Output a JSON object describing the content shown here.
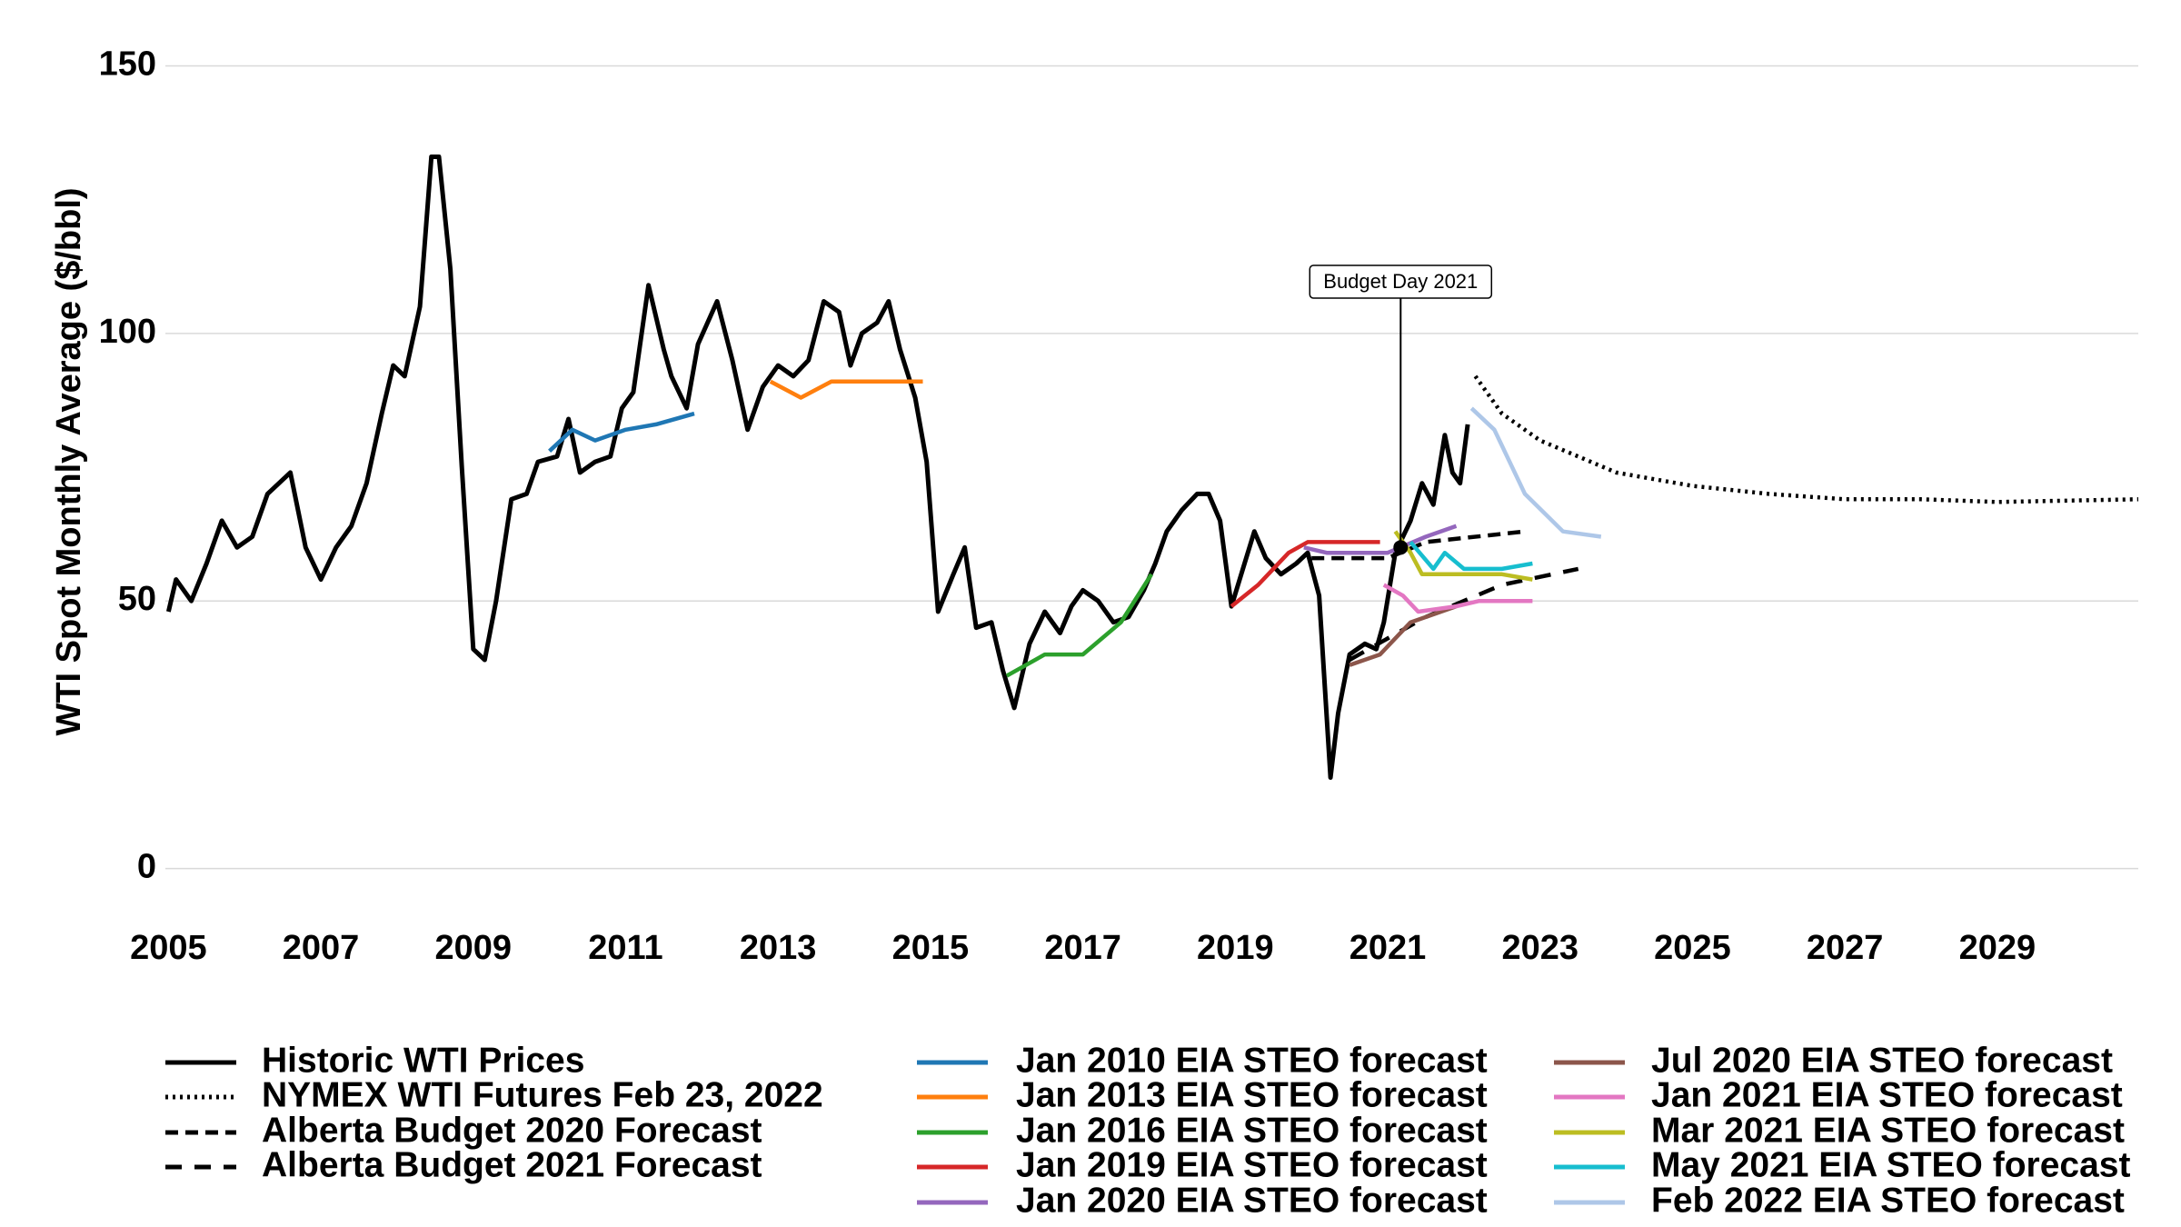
{
  "chart_data": {
    "type": "line",
    "y_label": "WTI Spot Monthly Average ($/bbl)",
    "xlim": [
      2004.96,
      2030.85
    ],
    "xticks": [
      2005,
      2007,
      2009,
      2011,
      2013,
      2015,
      2017,
      2019,
      2021,
      2023,
      2025,
      2027,
      2029
    ],
    "ylim": [
      -5,
      155
    ],
    "yticks": [
      0,
      50,
      100,
      150
    ],
    "grid": true,
    "legend": "bottom",
    "annotation": {
      "text": "Budget Day 2021",
      "x": 2021.17,
      "y": 60
    },
    "series": [
      {
        "name": "Historic WTI Prices",
        "color": "#000000",
        "dash": "solid",
        "x": [
          2005.0,
          2005.1,
          2005.3,
          2005.5,
          2005.7,
          2005.9,
          2006.1,
          2006.3,
          2006.6,
          2006.8,
          2007.0,
          2007.2,
          2007.4,
          2007.6,
          2007.8,
          2007.95,
          2008.1,
          2008.3,
          2008.45,
          2008.55,
          2008.7,
          2008.85,
          2009.0,
          2009.15,
          2009.3,
          2009.5,
          2009.7,
          2009.85,
          2010.1,
          2010.25,
          2010.4,
          2010.6,
          2010.8,
          2010.95,
          2011.1,
          2011.3,
          2011.5,
          2011.6,
          2011.8,
          2011.95,
          2012.2,
          2012.4,
          2012.6,
          2012.8,
          2013.0,
          2013.2,
          2013.4,
          2013.6,
          2013.8,
          2013.95,
          2014.1,
          2014.3,
          2014.45,
          2014.6,
          2014.8,
          2014.95,
          2015.1,
          2015.3,
          2015.45,
          2015.6,
          2015.8,
          2015.95,
          2016.1,
          2016.3,
          2016.5,
          2016.7,
          2016.85,
          2017.0,
          2017.2,
          2017.4,
          2017.6,
          2017.8,
          2017.95,
          2018.1,
          2018.3,
          2018.5,
          2018.65,
          2018.8,
          2018.95,
          2019.1,
          2019.25,
          2019.4,
          2019.6,
          2019.8,
          2019.95,
          2020.1,
          2020.25,
          2020.35,
          2020.5,
          2020.7,
          2020.85,
          2020.95,
          2021.1,
          2021.3,
          2021.45,
          2021.6,
          2021.75,
          2021.85,
          2021.95,
          2022.05
        ],
        "values": [
          48,
          54,
          50,
          57,
          65,
          60,
          62,
          70,
          74,
          60,
          54,
          60,
          64,
          72,
          85,
          94,
          92,
          105,
          133,
          133,
          112,
          75,
          41,
          39,
          50,
          69,
          70,
          76,
          77,
          84,
          74,
          76,
          77,
          86,
          89,
          109,
          97,
          92,
          86,
          98,
          106,
          95,
          82,
          90,
          94,
          92,
          95,
          106,
          104,
          94,
          100,
          102,
          106,
          97,
          88,
          76,
          48,
          55,
          60,
          45,
          46,
          37,
          30,
          42,
          48,
          44,
          49,
          52,
          50,
          46,
          47,
          52,
          57,
          63,
          67,
          70,
          70,
          65,
          49,
          56,
          63,
          58,
          55,
          57,
          59,
          51,
          17,
          29,
          40,
          42,
          41,
          46,
          59,
          65,
          72,
          68,
          81,
          74,
          72,
          83
        ]
      },
      {
        "name": "NYMEX WTI Futures Feb 23, 2022",
        "color": "#000000",
        "dash": "dotted",
        "x": [
          2022.15,
          2022.5,
          2023,
          2024,
          2025,
          2026,
          2027,
          2028,
          2029,
          2030.85
        ],
        "values": [
          92,
          85,
          80,
          74,
          71.5,
          70,
          69,
          69,
          68.5,
          69
        ]
      },
      {
        "name": "Alberta Budget 2020 Forecast",
        "color": "#000000",
        "dash": "dashed",
        "x": [
          2020.0,
          2021.0,
          2021.5,
          2022.8
        ],
        "values": [
          58,
          58,
          61,
          63
        ]
      },
      {
        "name": "Alberta Budget 2021 Forecast",
        "color": "#000000",
        "dash": "longdash",
        "x": [
          2020.5,
          2021.5,
          2022.5,
          2023.5
        ],
        "values": [
          39,
          47,
          53,
          56
        ]
      },
      {
        "name": "Jan 2010 EIA STEO forecast",
        "color": "#1f77b4",
        "dash": "solid",
        "x": [
          2010.0,
          2010.3,
          2010.6,
          2011.0,
          2011.4,
          2011.9
        ],
        "values": [
          78,
          82,
          80,
          82,
          83,
          85
        ]
      },
      {
        "name": "Jan 2013 EIA STEO forecast",
        "color": "#ff7f0e",
        "dash": "solid",
        "x": [
          2012.9,
          2013.3,
          2013.7,
          2014.9
        ],
        "values": [
          91,
          88,
          91,
          91
        ]
      },
      {
        "name": "Jan 2016 EIA STEO forecast",
        "color": "#2ca02c",
        "dash": "solid",
        "x": [
          2016.0,
          2016.5,
          2017.0,
          2017.5,
          2017.9
        ],
        "values": [
          36,
          40,
          40,
          46,
          55
        ]
      },
      {
        "name": "Jan 2019 EIA STEO forecast",
        "color": "#d62728",
        "dash": "solid",
        "x": [
          2018.95,
          2019.3,
          2019.7,
          2019.95,
          2020.4,
          2020.9
        ],
        "values": [
          49,
          53,
          59,
          61,
          61,
          61
        ]
      },
      {
        "name": "Jan 2020 EIA STEO forecast",
        "color": "#9467bd",
        "dash": "solid",
        "x": [
          2019.9,
          2020.2,
          2020.6,
          2021.0,
          2021.5,
          2021.9
        ],
        "values": [
          60,
          59,
          59,
          59,
          62,
          64
        ]
      },
      {
        "name": "Jul 2020 EIA STEO forecast",
        "color": "#8c564b",
        "dash": "solid",
        "x": [
          2020.5,
          2020.9,
          2021.3,
          2021.7,
          2021.9
        ],
        "values": [
          38,
          40,
          46,
          48,
          49
        ]
      },
      {
        "name": "Jan 2021 EIA STEO forecast",
        "color": "#e377c2",
        "dash": "solid",
        "x": [
          2020.95,
          2021.2,
          2021.4,
          2021.9,
          2022.2,
          2022.9
        ],
        "values": [
          53,
          51,
          48,
          49,
          50,
          50
        ]
      },
      {
        "name": "Mar 2021 EIA STEO forecast",
        "color": "#bcbd22",
        "dash": "solid",
        "x": [
          2021.1,
          2021.3,
          2021.45,
          2022.0,
          2022.5,
          2022.9
        ],
        "values": [
          63,
          59,
          55,
          55,
          55,
          54
        ]
      },
      {
        "name": "May 2021 EIA STEO forecast",
        "color": "#17becf",
        "dash": "solid",
        "x": [
          2021.3,
          2021.6,
          2021.75,
          2022.0,
          2022.5,
          2022.9
        ],
        "values": [
          61,
          56,
          59,
          56,
          56,
          57
        ]
      },
      {
        "name": "Feb 2022 EIA STEO forecast",
        "color": "#aec7e8",
        "dash": "solid",
        "x": [
          2022.1,
          2022.4,
          2022.8,
          2023.3,
          2023.8
        ],
        "values": [
          86,
          82,
          70,
          63,
          62
        ]
      }
    ]
  }
}
